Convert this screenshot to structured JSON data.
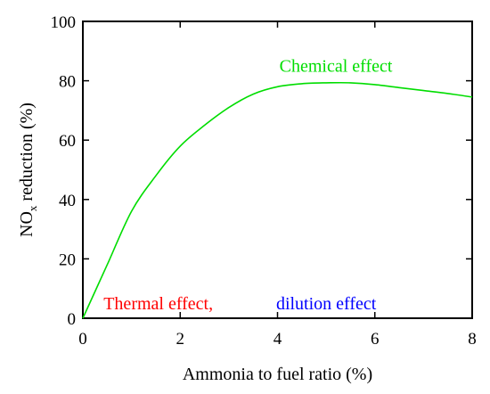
{
  "chart_data": {
    "type": "line",
    "xlabel": "Ammonia to fuel ratio (%)",
    "ylabel": {
      "main": "NO",
      "subscript": "x",
      "rest": " reduction (%)"
    },
    "xlim": [
      0,
      8
    ],
    "ylim": [
      0,
      100
    ],
    "x_ticks": [
      "0",
      "2",
      "4",
      "6",
      "8"
    ],
    "y_ticks": [
      "0",
      "20",
      "40",
      "60",
      "80",
      "100"
    ],
    "grid": false,
    "series": [
      {
        "color": "#00dd00",
        "x": [
          0,
          0.5,
          1.0,
          1.5,
          2.0,
          2.5,
          3.0,
          3.5,
          4.0,
          4.5,
          5.0,
          5.5,
          6.0,
          6.5,
          7.0,
          7.5,
          8.0
        ],
        "y": [
          0,
          18,
          36,
          48,
          58,
          65,
          71,
          75.5,
          78,
          79,
          79.3,
          79.3,
          78.7,
          77.7,
          76.7,
          75.7,
          74.5
        ]
      }
    ],
    "annotations": [
      {
        "id": "chemical",
        "text": "Chemical effect",
        "color": "#00dd00",
        "x": 5.2,
        "y": 83
      },
      {
        "id": "thermal",
        "text": "Thermal effect,",
        "color": "#ff0000",
        "x": 1.55,
        "y": 3
      },
      {
        "id": "dilution",
        "text": "dilution effect",
        "color": "#0000ff",
        "x": 5.0,
        "y": 3
      }
    ]
  }
}
